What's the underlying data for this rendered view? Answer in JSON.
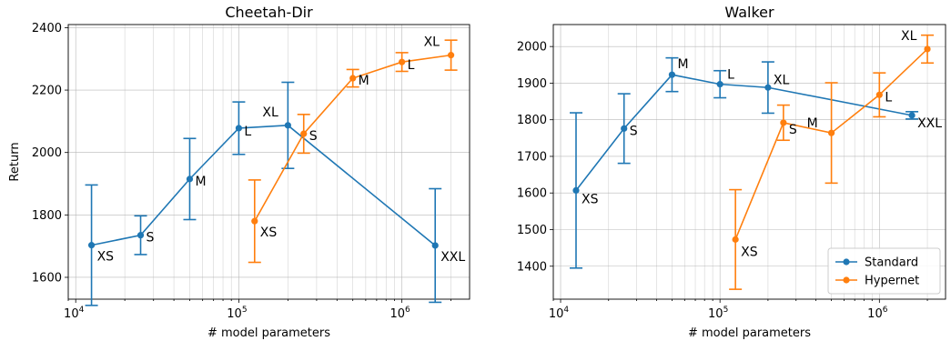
{
  "figure": {
    "shared_xlabel": "# model parameters"
  },
  "legend": {
    "entries": [
      "Standard",
      "Hypernet"
    ]
  },
  "colors": {
    "standard": "#1f77b4",
    "hypernet": "#ff7f0e",
    "grid": "#b0b0b0"
  },
  "chart_data": [
    {
      "type": "line",
      "title": "Cheetah-Dir",
      "xlabel": "# model parameters",
      "ylabel": "Return",
      "xscale": "log",
      "xlim": [
        9000,
        2600000
      ],
      "ylim": [
        1530,
        2410
      ],
      "yticks": [
        1600,
        1800,
        2000,
        2200,
        2400
      ],
      "xticks": [
        {
          "value": 10000,
          "base": "10",
          "exp": "4"
        },
        {
          "value": 100000,
          "base": "10",
          "exp": "5"
        },
        {
          "value": 1000000,
          "base": "10",
          "exp": "6"
        }
      ],
      "grid": true,
      "legend": null,
      "series": [
        {
          "name": "Standard",
          "points": [
            {
              "x": 12500,
              "y": 1703,
              "err": 193,
              "label": "XS"
            },
            {
              "x": 25000,
              "y": 1735,
              "err": 62,
              "label": "S"
            },
            {
              "x": 50000,
              "y": 1915,
              "err": 130,
              "label": "M"
            },
            {
              "x": 100000,
              "y": 2078,
              "err": 84,
              "label": "L"
            },
            {
              "x": 200000,
              "y": 2087,
              "err": 138,
              "label": "XL"
            },
            {
              "x": 1600000,
              "y": 1702,
              "err": 182,
              "label": "XXL"
            }
          ]
        },
        {
          "name": "Hypernet",
          "points": [
            {
              "x": 125000,
              "y": 1780,
              "err": 132,
              "label": "XS"
            },
            {
              "x": 250000,
              "y": 2060,
              "err": 62,
              "label": "S"
            },
            {
              "x": 500000,
              "y": 2238,
              "err": 28,
              "label": "M"
            },
            {
              "x": 1000000,
              "y": 2290,
              "err": 30,
              "label": "L"
            },
            {
              "x": 2000000,
              "y": 2312,
              "err": 48,
              "label": "XL"
            }
          ]
        }
      ]
    },
    {
      "type": "line",
      "title": "Walker",
      "xlabel": "# model parameters",
      "ylabel": "",
      "xscale": "log",
      "xlim": [
        9000,
        2600000
      ],
      "ylim": [
        1310,
        2060
      ],
      "yticks": [
        1400,
        1500,
        1600,
        1700,
        1800,
        1900,
        2000
      ],
      "xticks": [
        {
          "value": 10000,
          "base": "10",
          "exp": "4"
        },
        {
          "value": 100000,
          "base": "10",
          "exp": "5"
        },
        {
          "value": 1000000,
          "base": "10",
          "exp": "6"
        }
      ],
      "grid": true,
      "legend": "lower-right",
      "series": [
        {
          "name": "Standard",
          "points": [
            {
              "x": 12500,
              "y": 1607,
              "err": 212,
              "label": "XS"
            },
            {
              "x": 25000,
              "y": 1776,
              "err": 95,
              "label": "S"
            },
            {
              "x": 50000,
              "y": 1923,
              "err": 46,
              "label": "M"
            },
            {
              "x": 100000,
              "y": 1897,
              "err": 37,
              "label": "L"
            },
            {
              "x": 200000,
              "y": 1888,
              "err": 70,
              "label": "XL"
            },
            {
              "x": 1600000,
              "y": 1812,
              "err": 10,
              "label": "XXL"
            }
          ]
        },
        {
          "name": "Hypernet",
          "points": [
            {
              "x": 125000,
              "y": 1473,
              "err": 136,
              "label": "XS"
            },
            {
              "x": 250000,
              "y": 1792,
              "err": 48,
              "label": "S"
            },
            {
              "x": 500000,
              "y": 1764,
              "err": 137,
              "label": "M"
            },
            {
              "x": 1000000,
              "y": 1868,
              "err": 60,
              "label": "L"
            },
            {
              "x": 2000000,
              "y": 1993,
              "err": 38,
              "label": "XL"
            }
          ]
        }
      ]
    }
  ]
}
